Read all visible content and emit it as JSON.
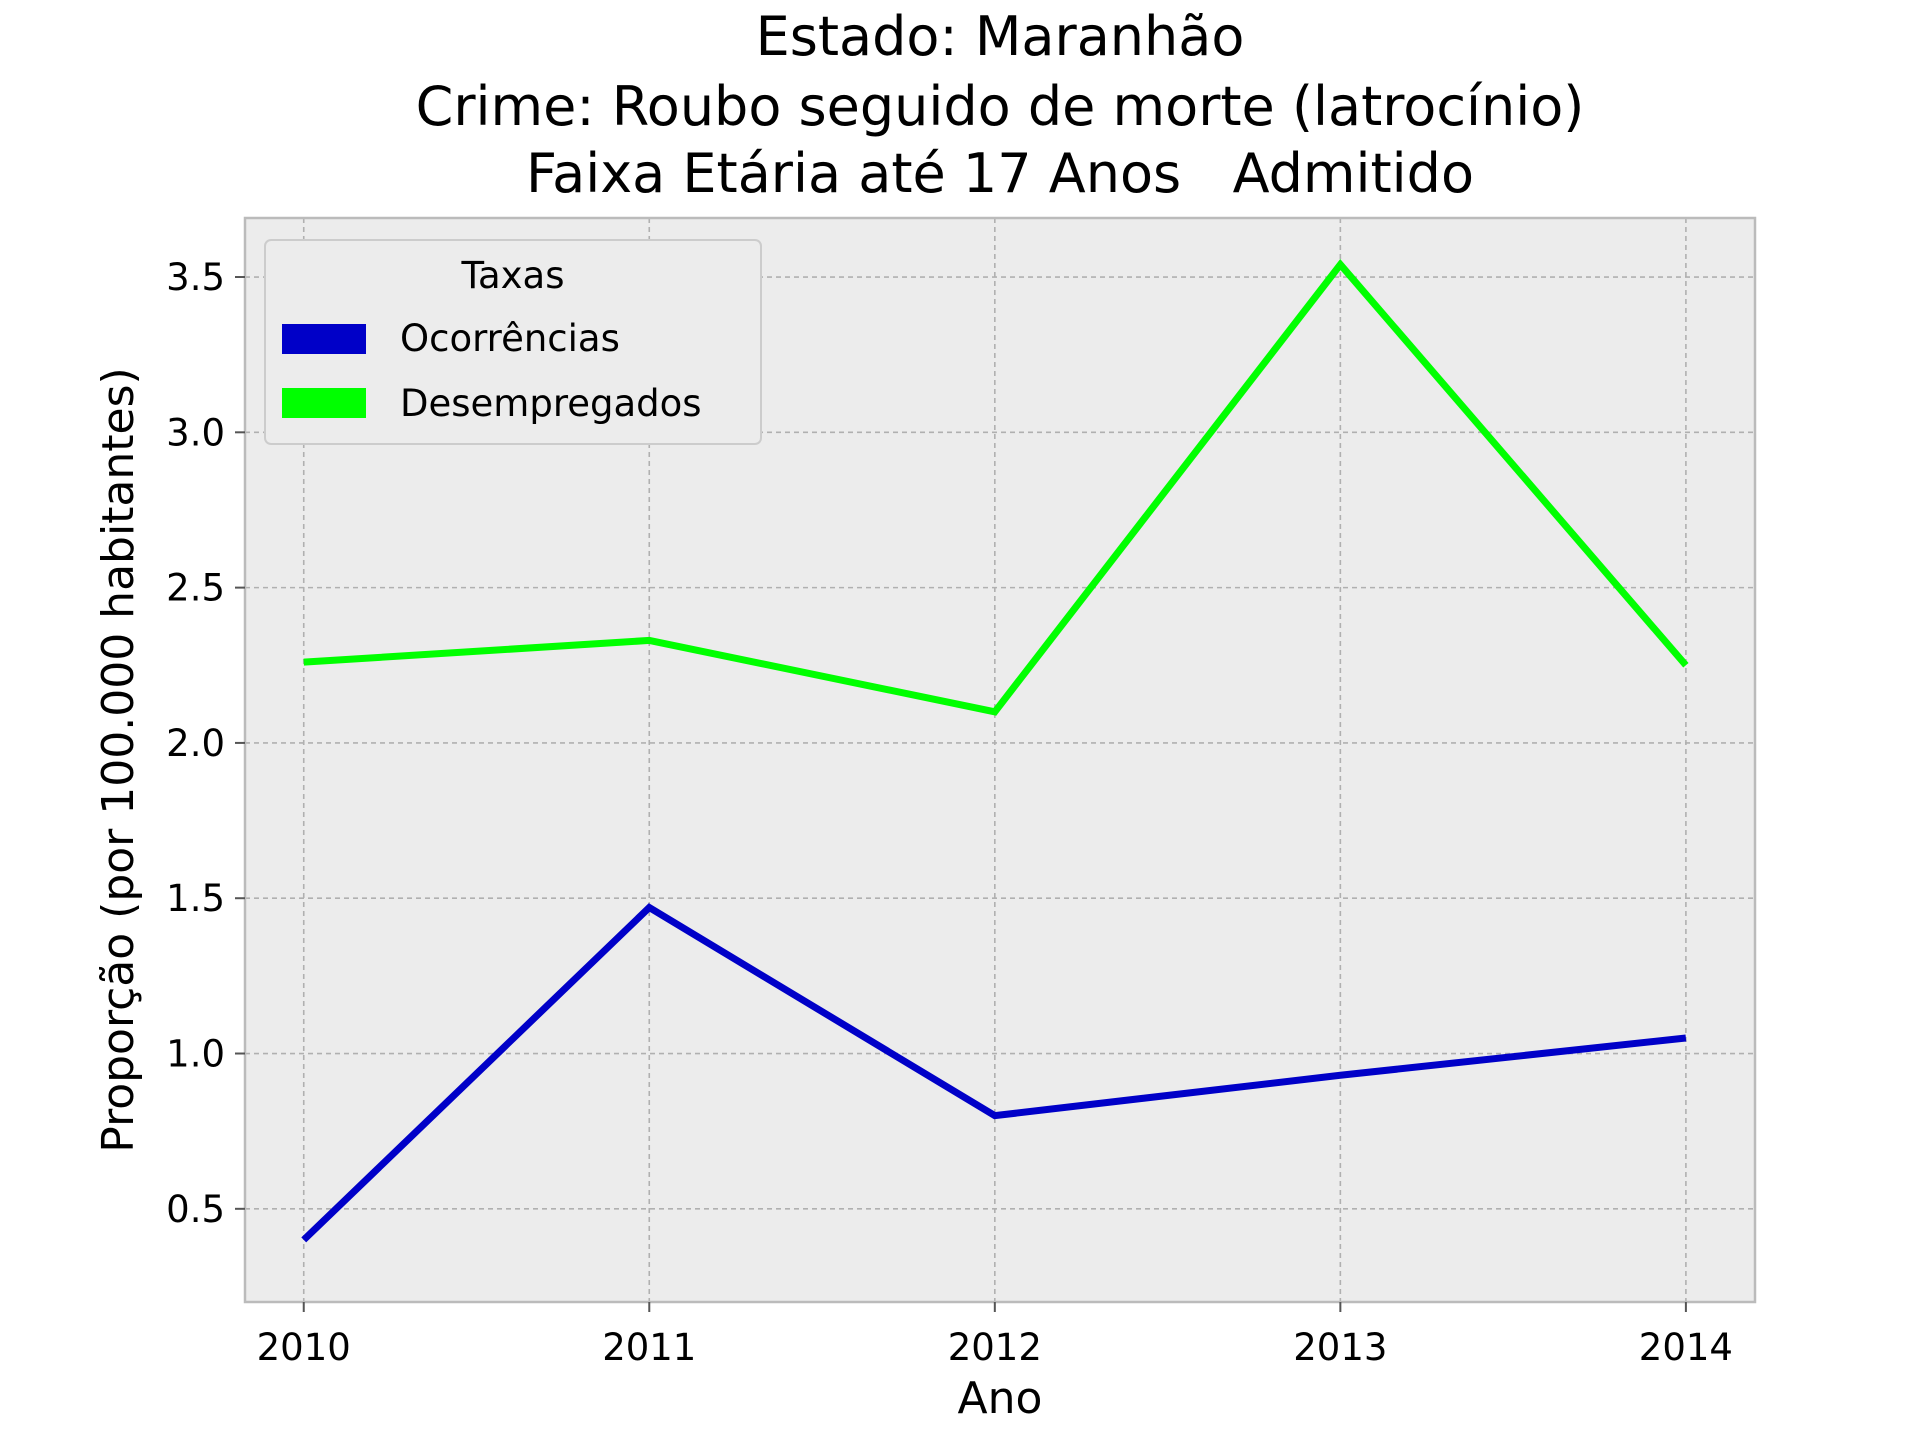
{
  "chart_data": {
    "type": "line",
    "title_lines": [
      "Estado: Maranhão",
      "Crime: Roubo seguido de morte (latrocínio)",
      "Faixa Etária até 17 Anos   Admitido"
    ],
    "xlabel": "Ano",
    "ylabel": "Proporção (por 100.000 habitantes)",
    "x": [
      "2010",
      "2011",
      "2012",
      "2013",
      "2014"
    ],
    "yticks": [
      "0.5",
      "1.0",
      "1.5",
      "2.0",
      "2.5",
      "3.0",
      "3.5"
    ],
    "ylim": [
      0.2,
      3.69
    ],
    "xlim": [
      2009.83,
      2014.2
    ],
    "grid": true,
    "legend": {
      "title": "Taxas",
      "placement": "upper-left"
    },
    "series": [
      {
        "name": "Ocorrências",
        "color": "#0000c8",
        "values": [
          0.4,
          1.47,
          0.8,
          0.93,
          1.05
        ]
      },
      {
        "name": "Desempregados",
        "color": "#00ff00",
        "values": [
          2.26,
          2.33,
          2.1,
          3.54,
          2.25
        ]
      }
    ],
    "colors": {
      "plot_background": "#ececec",
      "grid": "#b0b0b0",
      "spine": "#bbbbbb"
    }
  }
}
